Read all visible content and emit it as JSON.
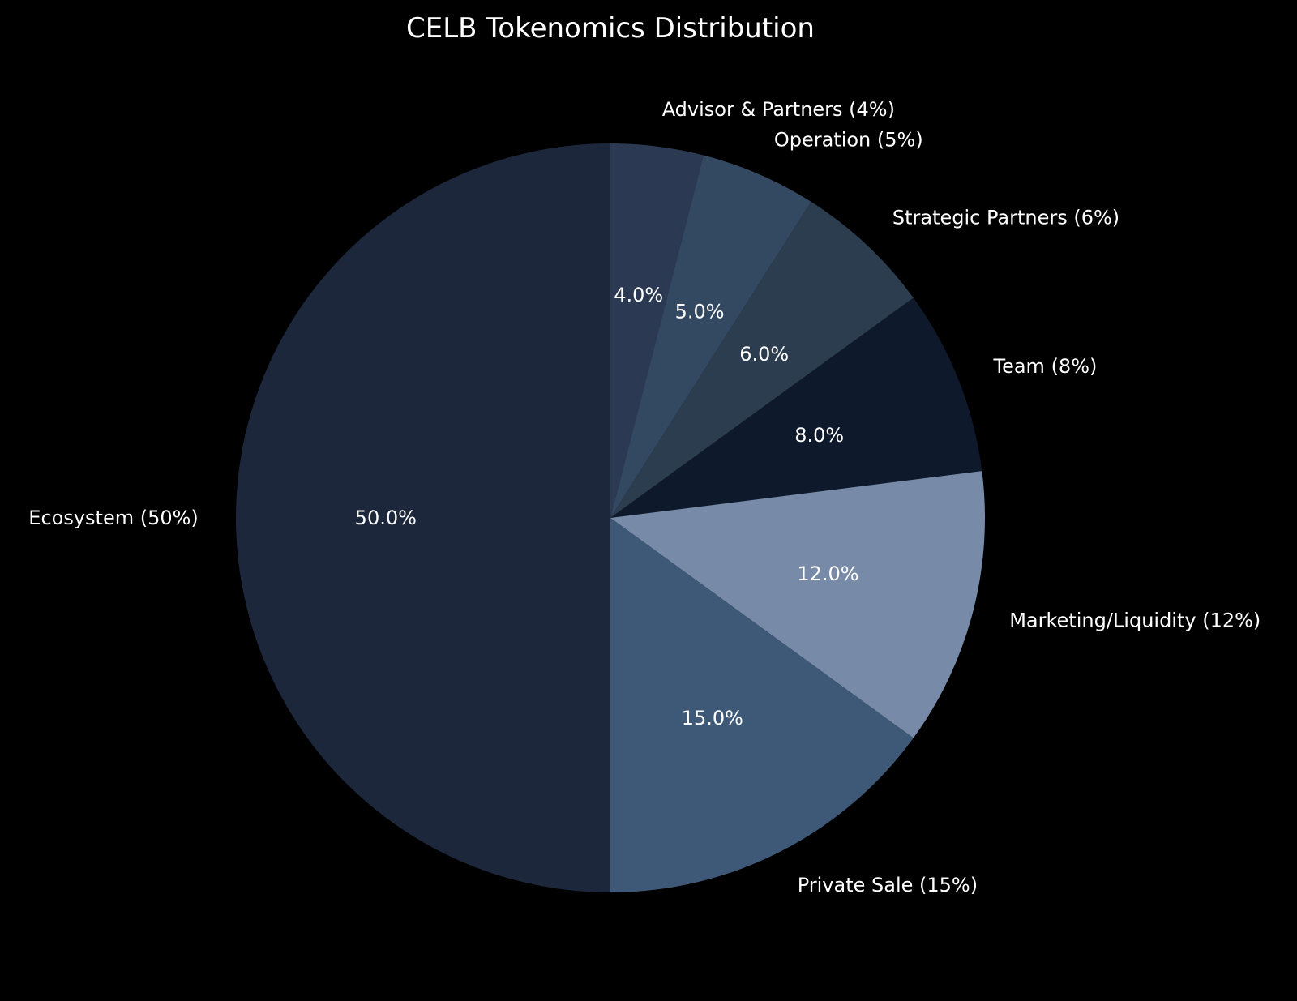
{
  "chart_data": {
    "type": "pie",
    "title": "CELB Tokenomics Distribution",
    "start_angle_deg": 90,
    "direction": "clockwise",
    "slices": [
      {
        "label": "Advisor & Partners (4%)",
        "value": 4,
        "pct_label": "4.0%",
        "color": "#2b3a52"
      },
      {
        "label": "Operation (5%)",
        "value": 5,
        "pct_label": "5.0%",
        "color": "#334961"
      },
      {
        "label": "Strategic Partners (6%)",
        "value": 6,
        "pct_label": "6.0%",
        "color": "#2c3d50"
      },
      {
        "label": "Team (8%)",
        "value": 8,
        "pct_label": "8.0%",
        "color": "#0e1a2b"
      },
      {
        "label": "Marketing/Liquidity (12%)",
        "value": 12,
        "pct_label": "12.0%",
        "color": "#778ba8"
      },
      {
        "label": "Private Sale (15%)",
        "value": 15,
        "pct_label": "15.0%",
        "color": "#3e5977"
      },
      {
        "label": "Ecosystem (50%)",
        "value": 50,
        "pct_label": "50.0%",
        "color": "#1c273b"
      }
    ]
  }
}
